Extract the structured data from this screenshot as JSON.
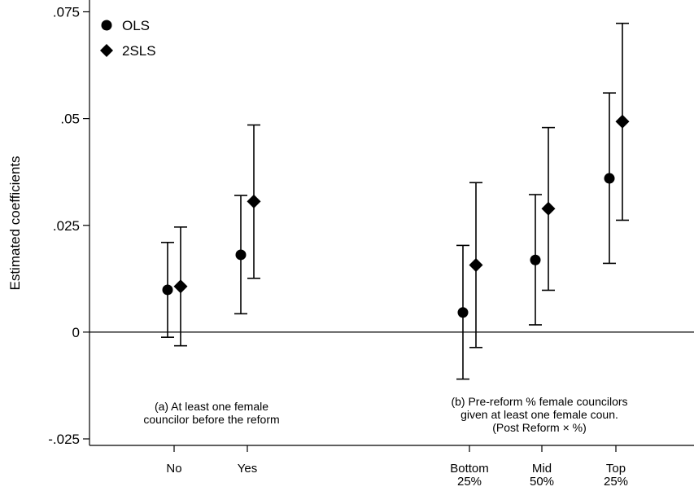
{
  "chart_data": {
    "type": "scatter",
    "title": "",
    "xlabel": "",
    "ylabel": "Estimated coefficients",
    "ylim": [
      -0.028,
      0.077
    ],
    "yticks": [
      {
        "value": -0.025,
        "label": "-.025"
      },
      {
        "value": 0,
        "label": "0"
      },
      {
        "value": 0.025,
        "label": ".025"
      },
      {
        "value": 0.05,
        "label": ".05"
      },
      {
        "value": 0.075,
        "label": ".075"
      }
    ],
    "reference_line": 0,
    "grid": false,
    "legend_position": "top-left",
    "categories": [
      {
        "key": "no",
        "label": [
          "No"
        ],
        "group": "a"
      },
      {
        "key": "yes",
        "label": [
          "Yes"
        ],
        "group": "a"
      },
      {
        "key": "bottom",
        "label": [
          "Bottom",
          "25%"
        ],
        "group": "b"
      },
      {
        "key": "mid",
        "label": [
          "Mid",
          "50%"
        ],
        "group": "b"
      },
      {
        "key": "top",
        "label": [
          "Top",
          "25%"
        ],
        "group": "b"
      }
    ],
    "groups": [
      {
        "key": "a",
        "lines": [
          "(a) At least one female",
          "councilor before the reform"
        ]
      },
      {
        "key": "b",
        "lines": [
          "(b) Pre-reform % female councilors",
          "given at least one female coun.",
          "(Post Reform × %)"
        ]
      }
    ],
    "series": [
      {
        "name": "OLS",
        "marker": "circle",
        "color": "#000000",
        "points": [
          {
            "category": "no",
            "estimate": 0.0099,
            "ci_low": -0.0012,
            "ci_high": 0.021
          },
          {
            "category": "yes",
            "estimate": 0.0181,
            "ci_low": 0.0043,
            "ci_high": 0.032
          },
          {
            "category": "bottom",
            "estimate": 0.0046,
            "ci_low": -0.011,
            "ci_high": 0.0203
          },
          {
            "category": "mid",
            "estimate": 0.0169,
            "ci_low": 0.0017,
            "ci_high": 0.0322
          },
          {
            "category": "top",
            "estimate": 0.036,
            "ci_low": 0.0161,
            "ci_high": 0.056
          }
        ]
      },
      {
        "name": "2SLS",
        "marker": "diamond",
        "color": "#000000",
        "points": [
          {
            "category": "no",
            "estimate": 0.0107,
            "ci_low": -0.0032,
            "ci_high": 0.0246
          },
          {
            "category": "yes",
            "estimate": 0.0306,
            "ci_low": 0.0126,
            "ci_high": 0.0485
          },
          {
            "category": "bottom",
            "estimate": 0.0157,
            "ci_low": -0.0036,
            "ci_high": 0.035
          },
          {
            "category": "mid",
            "estimate": 0.0289,
            "ci_low": 0.0098,
            "ci_high": 0.0479
          },
          {
            "category": "top",
            "estimate": 0.0493,
            "ci_low": 0.0262,
            "ci_high": 0.0723
          }
        ]
      }
    ]
  }
}
